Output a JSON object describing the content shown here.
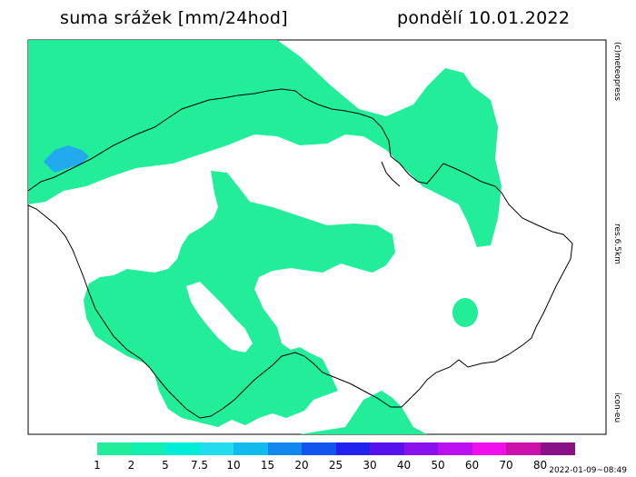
{
  "header": {
    "title": "suma srážek [mm/24hod]",
    "date": "pondělí 10.01.2022"
  },
  "side_labels": {
    "credit": "(c)meteopress",
    "resolution": "res.6.5km",
    "model": "icon-eu"
  },
  "run_timestamp": "2022-01-09~08:49",
  "legend": {
    "unit": "mm/24hod",
    "ticks": [
      "1",
      "2",
      "5",
      "7.5",
      "10",
      "15",
      "20",
      "25",
      "30",
      "40",
      "50",
      "60",
      "70",
      "80"
    ],
    "colors": [
      "#22ee99",
      "#11eeb0",
      "#00eed6",
      "#22ddee",
      "#11bbee",
      "#1188ee",
      "#1155ee",
      "#2222ee",
      "#5511ee",
      "#8811ee",
      "#bb11ee",
      "#ee11ee",
      "#cc11aa",
      "#881188"
    ]
  },
  "colors": {
    "precip_fill": "#22ee99",
    "heavy_fill": "#22aaee",
    "border": "#000000"
  }
}
